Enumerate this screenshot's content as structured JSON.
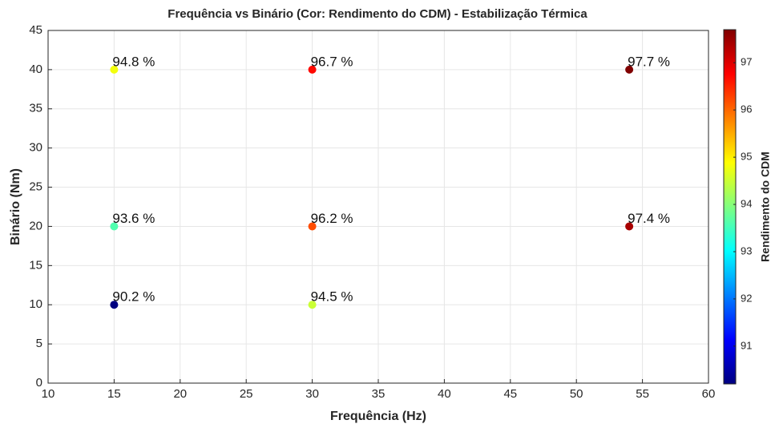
{
  "chart_data": {
    "type": "scatter",
    "title": "Frequência vs Binário (Cor: Rendimento do CDM) - Estabilização Térmica",
    "x_label": "Frequência (Hz)",
    "y_label": "Binário (Nm)",
    "x": [
      15,
      15,
      15,
      30,
      30,
      30,
      54,
      54
    ],
    "y": [
      10,
      20,
      40,
      10,
      20,
      40,
      20,
      40
    ],
    "values": [
      90.2,
      93.6,
      94.8,
      94.5,
      96.2,
      96.7,
      97.4,
      97.7
    ],
    "value_labels": [
      "90.2 %",
      "93.6 %",
      "94.8 %",
      "94.5 %",
      "96.2 %",
      "96.7 %",
      "97.4 %",
      "97.7 %"
    ],
    "xlim": [
      10,
      60
    ],
    "xticks": [
      10,
      15,
      20,
      25,
      30,
      35,
      40,
      45,
      50,
      55,
      60
    ],
    "ylim": [
      0,
      45
    ],
    "yticks": [
      0,
      5,
      10,
      15,
      20,
      25,
      30,
      35,
      40,
      45
    ],
    "grid": true,
    "colormap": "jet",
    "clim": [
      90.2,
      97.7
    ],
    "cticks": [
      91,
      92,
      93,
      94,
      95,
      96,
      97
    ],
    "colorbar_label": "Rendimento do CDM"
  }
}
